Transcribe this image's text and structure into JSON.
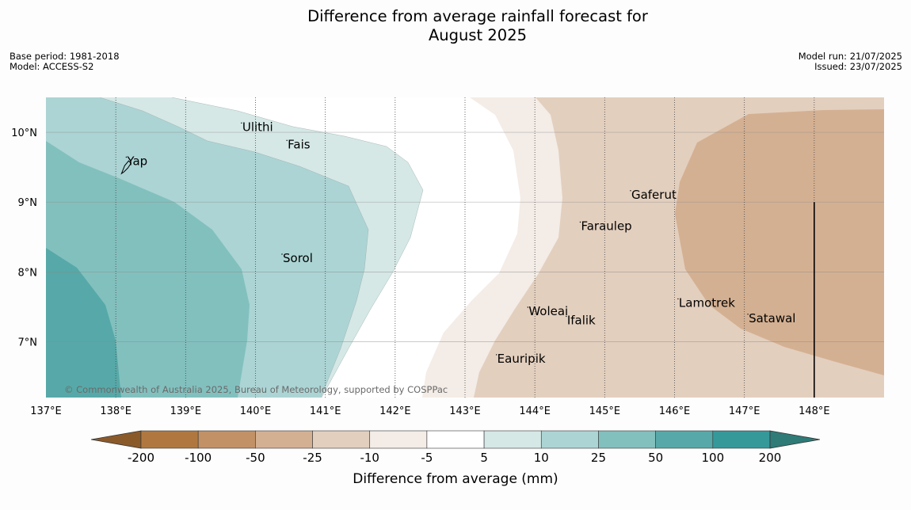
{
  "title": {
    "line1": "Difference from average rainfall forecast for",
    "line2": "August 2025"
  },
  "meta_left": {
    "base_period": "Base period: 1981-2018",
    "model": "Model: ACCESS-S2"
  },
  "meta_right": {
    "model_run": "Model run: 21/07/2025",
    "issued": "Issued: 23/07/2025"
  },
  "map": {
    "lon_range": [
      137,
      149
    ],
    "lat_range": [
      6.2,
      10.5
    ],
    "lon_ticks": [
      137,
      138,
      139,
      140,
      141,
      142,
      143,
      144,
      145,
      146,
      147,
      148
    ],
    "lon_tick_labels": [
      "137°E",
      "138°E",
      "139°E",
      "140°E",
      "141°E",
      "142°E",
      "143°E",
      "144°E",
      "145°E",
      "146°E",
      "147°E",
      "148°E"
    ],
    "lat_ticks": [
      7,
      8,
      9,
      10
    ],
    "lat_tick_labels": [
      "7°N",
      "8°N",
      "9°N",
      "10°N"
    ],
    "meridian_style": "dotted",
    "parallel_style": "solid-grey",
    "places": [
      {
        "name": "Ulithi",
        "lon": 139.8,
        "lat": 10.02
      },
      {
        "name": "Fais",
        "lon": 140.45,
        "lat": 9.77
      },
      {
        "name": "Yap",
        "lon": 138.15,
        "lat": 9.53
      },
      {
        "name": "Gaferut",
        "lon": 145.37,
        "lat": 9.05
      },
      {
        "name": "Faraulep",
        "lon": 144.65,
        "lat": 8.6
      },
      {
        "name": "Sorol",
        "lon": 140.38,
        "lat": 8.14
      },
      {
        "name": "Lamotrek",
        "lon": 146.05,
        "lat": 7.5
      },
      {
        "name": "Woleai",
        "lon": 143.9,
        "lat": 7.38
      },
      {
        "name": "Ifalik",
        "lon": 144.45,
        "lat": 7.25
      },
      {
        "name": "Satawal",
        "lon": 147.05,
        "lat": 7.28
      },
      {
        "name": "Eauripik",
        "lon": 143.45,
        "lat": 6.7
      }
    ],
    "copyright": "© Commonwealth of Australia 2025, Bureau of Meteorology, supported by COSPPac"
  },
  "colorbar": {
    "title": "Difference from average (mm)",
    "labels": [
      "-200",
      "-100",
      "-50",
      "-25",
      "-10",
      "-5",
      "5",
      "10",
      "25",
      "50",
      "100",
      "200"
    ],
    "colors": [
      "#8b5a2b",
      "#b07840",
      "#c29166",
      "#d4b092",
      "#e3cfbe",
      "#f4ece6",
      "#ffffff",
      "#d5e8e6",
      "#acd4d4",
      "#82c0be",
      "#56a9a8",
      "#35999a",
      "#2e7b78"
    ]
  }
}
